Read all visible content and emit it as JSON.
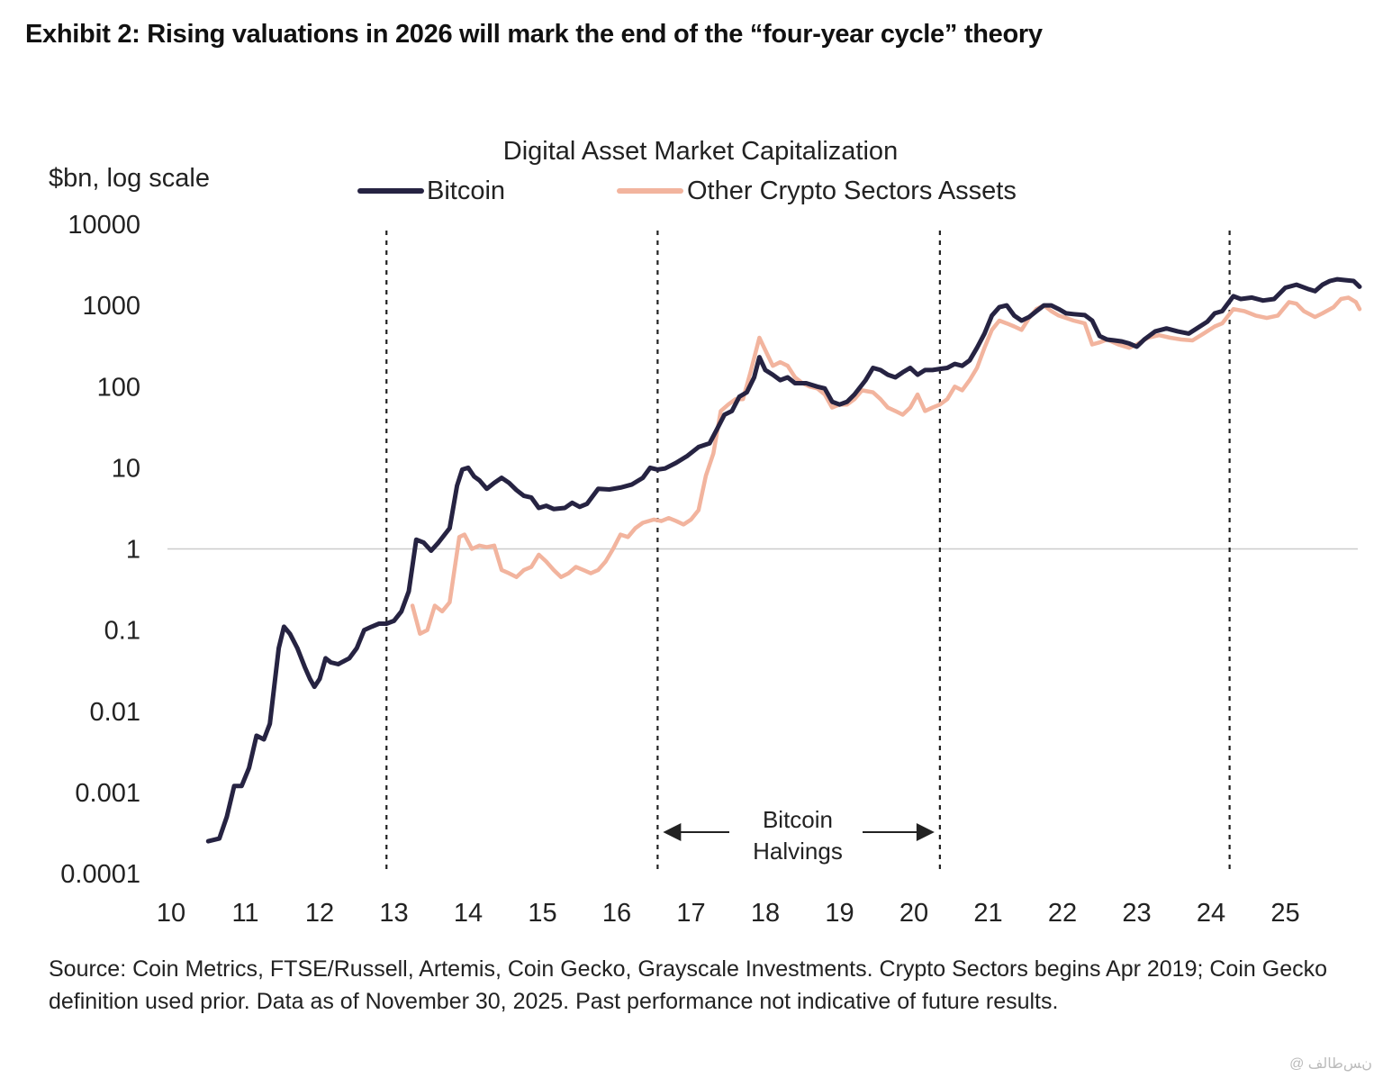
{
  "exhibit_title": "Exhibit 2: Rising valuations in 2026 will mark the end of the “four-year cycle” theory",
  "source_note": "Source: Coin Metrics, FTSE/Russell, Artemis, Coin Gecko, Grayscale Investments. Crypto Sectors begins Apr 2019; Coin Gecko definition used prior. Data as of November 30, 2025. Past performance not indicative of future results.",
  "watermark": "@ ﻥﺲﻃﺎﻟﻒ",
  "colors": {
    "bitcoin": "#262342",
    "other": "#f2b49e",
    "grid": "#cccccc",
    "text": "#222222"
  },
  "chart_data": {
    "type": "line",
    "title": "Digital Asset Market Capitalization",
    "ylabel": "$bn, log scale",
    "yscale": "log",
    "ylim": [
      0.0001,
      10000
    ],
    "xlim": [
      10,
      26
    ],
    "yticks": [
      {
        "value": 10000,
        "label": "10000"
      },
      {
        "value": 1000,
        "label": "1000"
      },
      {
        "value": 100,
        "label": "100"
      },
      {
        "value": 10,
        "label": "10"
      },
      {
        "value": 1,
        "label": "1"
      },
      {
        "value": 0.1,
        "label": "0.1"
      },
      {
        "value": 0.01,
        "label": "0.01"
      },
      {
        "value": 0.001,
        "label": "0.001"
      },
      {
        "value": 0.0001,
        "label": "0.0001"
      }
    ],
    "xticks": [
      {
        "value": 10,
        "label": "10"
      },
      {
        "value": 11,
        "label": "11"
      },
      {
        "value": 12,
        "label": "12"
      },
      {
        "value": 13,
        "label": "13"
      },
      {
        "value": 14,
        "label": "14"
      },
      {
        "value": 15,
        "label": "15"
      },
      {
        "value": 16,
        "label": "16"
      },
      {
        "value": 17,
        "label": "17"
      },
      {
        "value": 18,
        "label": "18"
      },
      {
        "value": 19,
        "label": "19"
      },
      {
        "value": 20,
        "label": "20"
      },
      {
        "value": 21,
        "label": "21"
      },
      {
        "value": 22,
        "label": "22"
      },
      {
        "value": 23,
        "label": "23"
      },
      {
        "value": 24,
        "label": "24"
      },
      {
        "value": 25,
        "label": "25"
      }
    ],
    "reference_line": 1,
    "halvings": [
      12.9,
      16.55,
      20.35,
      24.25
    ],
    "annotation": {
      "line1": "Bitcoin",
      "line2": "Halvings",
      "from": 16.55,
      "to": 20.35
    },
    "legend_position": "top",
    "series": [
      {
        "name": "Bitcoin",
        "color": "#262342",
        "points": [
          [
            10.5,
            0.00025
          ],
          [
            10.65,
            0.00027
          ],
          [
            10.75,
            0.0005
          ],
          [
            10.85,
            0.0012
          ],
          [
            10.95,
            0.0012
          ],
          [
            11.05,
            0.002
          ],
          [
            11.15,
            0.005
          ],
          [
            11.25,
            0.0045
          ],
          [
            11.33,
            0.007
          ],
          [
            11.45,
            0.06
          ],
          [
            11.52,
            0.11
          ],
          [
            11.6,
            0.09
          ],
          [
            11.7,
            0.06
          ],
          [
            11.8,
            0.035
          ],
          [
            11.87,
            0.025
          ],
          [
            11.93,
            0.02
          ],
          [
            12.0,
            0.025
          ],
          [
            12.08,
            0.045
          ],
          [
            12.15,
            0.04
          ],
          [
            12.25,
            0.038
          ],
          [
            12.4,
            0.045
          ],
          [
            12.5,
            0.06
          ],
          [
            12.6,
            0.1
          ],
          [
            12.7,
            0.11
          ],
          [
            12.8,
            0.12
          ],
          [
            12.9,
            0.12
          ],
          [
            13.0,
            0.13
          ],
          [
            13.1,
            0.17
          ],
          [
            13.2,
            0.3
          ],
          [
            13.3,
            1.3
          ],
          [
            13.4,
            1.2
          ],
          [
            13.5,
            0.95
          ],
          [
            13.6,
            1.2
          ],
          [
            13.75,
            1.8
          ],
          [
            13.85,
            6
          ],
          [
            13.92,
            9.5
          ],
          [
            14.0,
            10
          ],
          [
            14.08,
            7.8
          ],
          [
            14.15,
            7
          ],
          [
            14.25,
            5.5
          ],
          [
            14.35,
            6.5
          ],
          [
            14.45,
            7.5
          ],
          [
            14.55,
            6.5
          ],
          [
            14.65,
            5.3
          ],
          [
            14.75,
            4.5
          ],
          [
            14.85,
            4.3
          ],
          [
            14.95,
            3.2
          ],
          [
            15.05,
            3.4
          ],
          [
            15.15,
            3.1
          ],
          [
            15.3,
            3.2
          ],
          [
            15.4,
            3.7
          ],
          [
            15.5,
            3.3
          ],
          [
            15.6,
            3.6
          ],
          [
            15.75,
            5.5
          ],
          [
            15.9,
            5.4
          ],
          [
            16.05,
            5.7
          ],
          [
            16.2,
            6.2
          ],
          [
            16.35,
            7.5
          ],
          [
            16.45,
            10
          ],
          [
            16.55,
            9.5
          ],
          [
            16.65,
            9.8
          ],
          [
            16.8,
            11.5
          ],
          [
            16.95,
            14
          ],
          [
            17.1,
            18
          ],
          [
            17.25,
            20
          ],
          [
            17.35,
            30
          ],
          [
            17.45,
            45
          ],
          [
            17.55,
            50
          ],
          [
            17.65,
            75
          ],
          [
            17.75,
            85
          ],
          [
            17.85,
            130
          ],
          [
            17.92,
            230
          ],
          [
            18.0,
            160
          ],
          [
            18.1,
            140
          ],
          [
            18.2,
            120
          ],
          [
            18.3,
            130
          ],
          [
            18.4,
            110
          ],
          [
            18.55,
            110
          ],
          [
            18.7,
            100
          ],
          [
            18.8,
            95
          ],
          [
            18.9,
            65
          ],
          [
            19.0,
            60
          ],
          [
            19.1,
            65
          ],
          [
            19.2,
            80
          ],
          [
            19.35,
            120
          ],
          [
            19.45,
            170
          ],
          [
            19.55,
            160
          ],
          [
            19.65,
            140
          ],
          [
            19.75,
            130
          ],
          [
            19.85,
            150
          ],
          [
            19.95,
            170
          ],
          [
            20.05,
            140
          ],
          [
            20.15,
            160
          ],
          [
            20.25,
            160
          ],
          [
            20.35,
            165
          ],
          [
            20.45,
            170
          ],
          [
            20.55,
            190
          ],
          [
            20.65,
            180
          ],
          [
            20.75,
            210
          ],
          [
            20.85,
            300
          ],
          [
            20.95,
            450
          ],
          [
            21.05,
            750
          ],
          [
            21.15,
            950
          ],
          [
            21.25,
            1000
          ],
          [
            21.35,
            750
          ],
          [
            21.45,
            650
          ],
          [
            21.55,
            720
          ],
          [
            21.65,
            850
          ],
          [
            21.75,
            1000
          ],
          [
            21.85,
            1000
          ],
          [
            21.95,
            900
          ],
          [
            22.05,
            800
          ],
          [
            22.15,
            780
          ],
          [
            22.3,
            760
          ],
          [
            22.4,
            650
          ],
          [
            22.5,
            420
          ],
          [
            22.6,
            380
          ],
          [
            22.7,
            370
          ],
          [
            22.8,
            360
          ],
          [
            22.9,
            340
          ],
          [
            23.0,
            310
          ],
          [
            23.1,
            380
          ],
          [
            23.25,
            480
          ],
          [
            23.4,
            520
          ],
          [
            23.55,
            480
          ],
          [
            23.7,
            450
          ],
          [
            23.85,
            550
          ],
          [
            23.95,
            630
          ],
          [
            24.05,
            800
          ],
          [
            24.15,
            850
          ],
          [
            24.3,
            1300
          ],
          [
            24.4,
            1200
          ],
          [
            24.55,
            1250
          ],
          [
            24.7,
            1150
          ],
          [
            24.85,
            1200
          ],
          [
            25.0,
            1650
          ],
          [
            25.15,
            1800
          ],
          [
            25.3,
            1600
          ],
          [
            25.4,
            1500
          ],
          [
            25.5,
            1800
          ],
          [
            25.6,
            2000
          ],
          [
            25.7,
            2100
          ],
          [
            25.8,
            2050
          ],
          [
            25.92,
            2000
          ],
          [
            26.0,
            1700
          ]
        ]
      },
      {
        "name": "Other Crypto Sectors Assets",
        "color": "#f2b49e",
        "points": [
          [
            13.25,
            0.2
          ],
          [
            13.35,
            0.09
          ],
          [
            13.45,
            0.1
          ],
          [
            13.55,
            0.2
          ],
          [
            13.65,
            0.17
          ],
          [
            13.75,
            0.22
          ],
          [
            13.88,
            1.4
          ],
          [
            13.95,
            1.5
          ],
          [
            14.05,
            1.0
          ],
          [
            14.15,
            1.1
          ],
          [
            14.25,
            1.05
          ],
          [
            14.35,
            1.1
          ],
          [
            14.45,
            0.55
          ],
          [
            14.55,
            0.5
          ],
          [
            14.65,
            0.45
          ],
          [
            14.75,
            0.55
          ],
          [
            14.85,
            0.6
          ],
          [
            14.95,
            0.85
          ],
          [
            15.05,
            0.7
          ],
          [
            15.15,
            0.55
          ],
          [
            15.25,
            0.45
          ],
          [
            15.35,
            0.5
          ],
          [
            15.45,
            0.6
          ],
          [
            15.55,
            0.55
          ],
          [
            15.65,
            0.5
          ],
          [
            15.75,
            0.55
          ],
          [
            15.85,
            0.7
          ],
          [
            15.95,
            1.0
          ],
          [
            16.05,
            1.5
          ],
          [
            16.15,
            1.4
          ],
          [
            16.25,
            1.8
          ],
          [
            16.35,
            2.1
          ],
          [
            16.5,
            2.3
          ],
          [
            16.6,
            2.2
          ],
          [
            16.7,
            2.4
          ],
          [
            16.8,
            2.2
          ],
          [
            16.9,
            2.0
          ],
          [
            17.0,
            2.3
          ],
          [
            17.1,
            3.0
          ],
          [
            17.2,
            8
          ],
          [
            17.3,
            15
          ],
          [
            17.4,
            50
          ],
          [
            17.5,
            60
          ],
          [
            17.6,
            70
          ],
          [
            17.7,
            70
          ],
          [
            17.8,
            150
          ],
          [
            17.92,
            400
          ],
          [
            18.0,
            280
          ],
          [
            18.1,
            180
          ],
          [
            18.2,
            200
          ],
          [
            18.3,
            180
          ],
          [
            18.4,
            130
          ],
          [
            18.5,
            110
          ],
          [
            18.6,
            100
          ],
          [
            18.7,
            95
          ],
          [
            18.8,
            80
          ],
          [
            18.9,
            55
          ],
          [
            19.0,
            60
          ],
          [
            19.1,
            60
          ],
          [
            19.2,
            70
          ],
          [
            19.3,
            90
          ],
          [
            19.45,
            85
          ],
          [
            19.55,
            70
          ],
          [
            19.65,
            55
          ],
          [
            19.75,
            50
          ],
          [
            19.85,
            45
          ],
          [
            19.95,
            55
          ],
          [
            20.05,
            80
          ],
          [
            20.15,
            50
          ],
          [
            20.25,
            55
          ],
          [
            20.35,
            60
          ],
          [
            20.45,
            70
          ],
          [
            20.55,
            100
          ],
          [
            20.65,
            90
          ],
          [
            20.75,
            120
          ],
          [
            20.85,
            170
          ],
          [
            20.95,
            300
          ],
          [
            21.05,
            500
          ],
          [
            21.15,
            650
          ],
          [
            21.25,
            600
          ],
          [
            21.35,
            550
          ],
          [
            21.45,
            500
          ],
          [
            21.55,
            700
          ],
          [
            21.65,
            900
          ],
          [
            21.75,
            1000
          ],
          [
            21.85,
            850
          ],
          [
            21.95,
            750
          ],
          [
            22.05,
            700
          ],
          [
            22.15,
            650
          ],
          [
            22.3,
            600
          ],
          [
            22.4,
            330
          ],
          [
            22.5,
            350
          ],
          [
            22.6,
            380
          ],
          [
            22.75,
            330
          ],
          [
            22.9,
            300
          ],
          [
            23.0,
            330
          ],
          [
            23.15,
            400
          ],
          [
            23.3,
            430
          ],
          [
            23.45,
            400
          ],
          [
            23.6,
            380
          ],
          [
            23.75,
            370
          ],
          [
            23.9,
            450
          ],
          [
            24.05,
            550
          ],
          [
            24.15,
            600
          ],
          [
            24.3,
            900
          ],
          [
            24.45,
            850
          ],
          [
            24.6,
            750
          ],
          [
            24.75,
            700
          ],
          [
            24.9,
            750
          ],
          [
            25.05,
            1100
          ],
          [
            25.15,
            1050
          ],
          [
            25.25,
            850
          ],
          [
            25.4,
            720
          ],
          [
            25.5,
            800
          ],
          [
            25.65,
            950
          ],
          [
            25.75,
            1200
          ],
          [
            25.85,
            1250
          ],
          [
            25.95,
            1100
          ],
          [
            26.0,
            900
          ]
        ]
      }
    ]
  }
}
